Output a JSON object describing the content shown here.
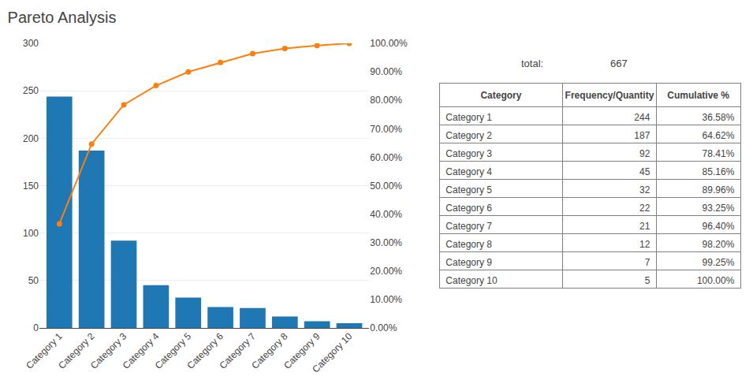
{
  "chart_data": {
    "type": "bar",
    "title": "Pareto Analysis",
    "categories": [
      "Category 1",
      "Category 2",
      "Category 3",
      "Category 4",
      "Category 5",
      "Category 6",
      "Category 7",
      "Category 8",
      "Category 9",
      "Category 10"
    ],
    "series": [
      {
        "name": "Frequency/Quantity",
        "type": "bar",
        "values": [
          244,
          187,
          92,
          45,
          32,
          22,
          21,
          12,
          7,
          5
        ]
      },
      {
        "name": "Cumulative %",
        "type": "line",
        "axis": "y2",
        "marker": "circle",
        "line_style": "solid",
        "values": [
          36.58,
          64.62,
          78.41,
          85.16,
          89.96,
          93.25,
          96.4,
          98.2,
          99.25,
          100.0
        ],
        "value_labels": [
          "36.58%",
          "64.62%",
          "78.41%",
          "85.16%",
          "89.96%",
          "93.25%",
          "96.40%",
          "98.20%",
          "99.25%",
          "100.00%"
        ]
      }
    ],
    "ylim": [
      0,
      300
    ],
    "yticks": [
      0,
      50,
      100,
      150,
      200,
      250,
      300
    ],
    "y2lim": [
      0,
      100
    ],
    "y2ticks": [
      {
        "value": 0,
        "label": "0.00%"
      },
      {
        "value": 10,
        "label": "10.00%"
      },
      {
        "value": 20,
        "label": "20.00%"
      },
      {
        "value": 30,
        "label": "30.00%"
      },
      {
        "value": 40,
        "label": "40.00%"
      },
      {
        "value": 50,
        "label": "50.00%"
      },
      {
        "value": 60,
        "label": "60.00%"
      },
      {
        "value": 70,
        "label": "70.00%"
      },
      {
        "value": 80,
        "label": "80.00%"
      },
      {
        "value": 90,
        "label": "90.00%"
      },
      {
        "value": 100,
        "label": "100.00%"
      }
    ],
    "grid": true,
    "table_header": [
      "Category",
      "Frequency/Quantity",
      "Cumulative %"
    ],
    "total_label": "total:",
    "total": 667
  }
}
